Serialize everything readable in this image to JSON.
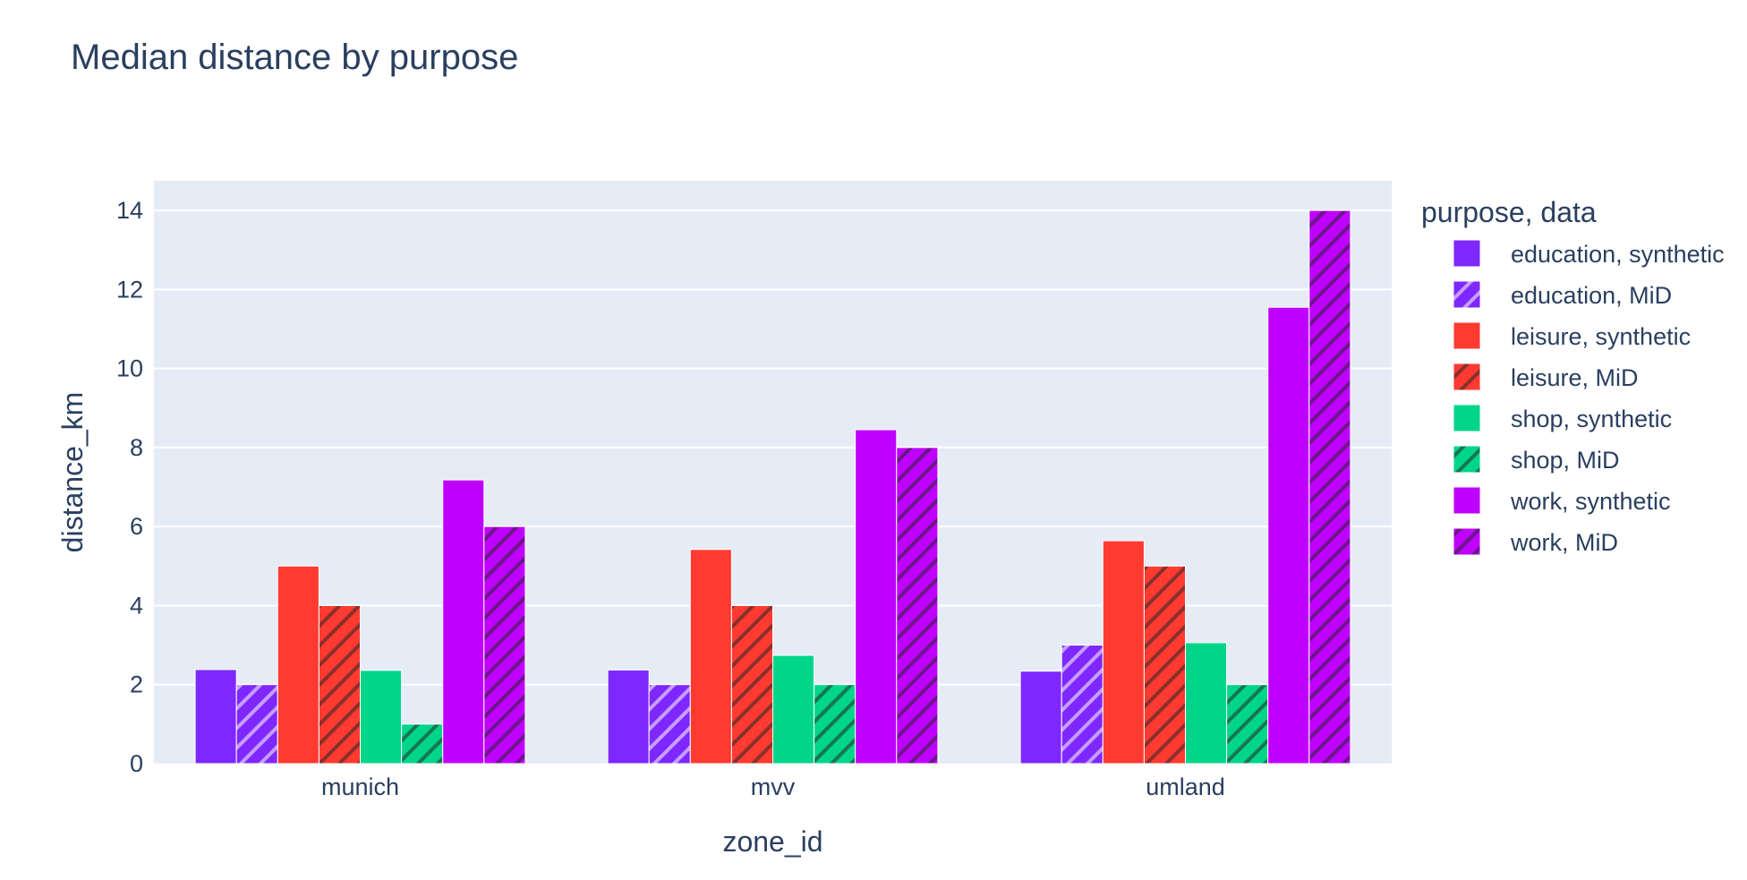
{
  "chart_data": {
    "type": "bar",
    "title": "Median distance by purpose",
    "xlabel": "zone_id",
    "ylabel": "distance_km",
    "categories": [
      "munich",
      "mvv",
      "umland"
    ],
    "ylim": [
      0,
      14.75
    ],
    "yticks": [
      0,
      2,
      4,
      6,
      8,
      10,
      12,
      14
    ],
    "grid": true,
    "legend_title": "purpose, data",
    "legend_position": "right",
    "series": [
      {
        "name": "education, synthetic",
        "color": "#7f27ff",
        "pattern": "none",
        "values": [
          2.38,
          2.37,
          2.34
        ]
      },
      {
        "name": "education, MiD",
        "color": "#7f27ff",
        "pattern": "hatch-light",
        "values": [
          2.0,
          2.0,
          3.0
        ]
      },
      {
        "name": "leisure, synthetic",
        "color": "#ff3a30",
        "pattern": "none",
        "values": [
          5.0,
          5.42,
          5.64
        ]
      },
      {
        "name": "leisure, MiD",
        "color": "#ff3a30",
        "pattern": "hatch-dark",
        "values": [
          4.0,
          4.0,
          5.0
        ]
      },
      {
        "name": "shop, synthetic",
        "color": "#00d58a",
        "pattern": "none",
        "values": [
          2.36,
          2.74,
          3.06
        ]
      },
      {
        "name": "shop, MiD",
        "color": "#00d58a",
        "pattern": "hatch-dark",
        "values": [
          1.0,
          2.0,
          2.0
        ]
      },
      {
        "name": "work, synthetic",
        "color": "#bf00ff",
        "pattern": "none",
        "values": [
          7.18,
          8.45,
          11.55
        ]
      },
      {
        "name": "work, MiD",
        "color": "#bf00ff",
        "pattern": "hatch-dark",
        "values": [
          6.0,
          8.0,
          14.0
        ]
      }
    ]
  }
}
